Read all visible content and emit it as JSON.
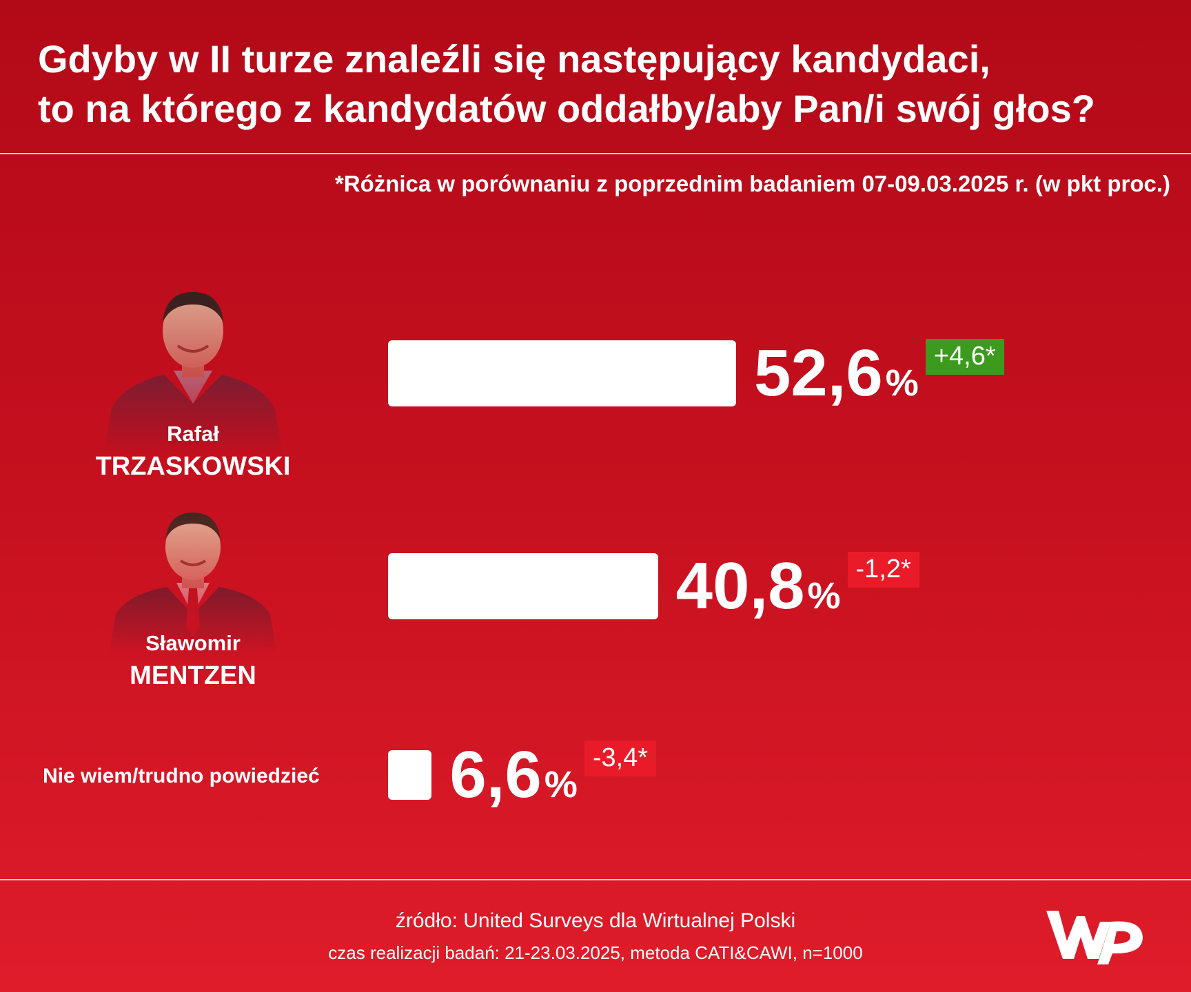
{
  "title_lines": [
    "Gdyby w II turze znaleźli się następujący kandydaci,",
    "to na którego z kandydatów oddałby/aby Pan/i swój głos?"
  ],
  "footnote": "*Różnica w porównaniu z poprzednim badaniem 07-09.03.2025 r. (w pkt proc.)",
  "chart_data": {
    "type": "bar",
    "orientation": "horizontal",
    "categories": [
      "Rafał TRZASKOWSKI",
      "Sławomir MENTZEN",
      "Nie wiem/trudno powiedzieć"
    ],
    "values": [
      52.6,
      40.8,
      6.6
    ],
    "value_labels": [
      "52,6",
      "40,8",
      "6,6"
    ],
    "unit": "%",
    "delta_labels": [
      "+4,6*",
      "-1,2*",
      "-3,4*"
    ],
    "deltas": [
      4.6,
      -1.2,
      -3.4
    ],
    "bar_color": "#ffffff",
    "grid": false
  },
  "candidates": [
    {
      "first_name": "Rafał",
      "last_name": "TRZASKOWSKI"
    },
    {
      "first_name": "Sławomir",
      "last_name": "MENTZEN"
    }
  ],
  "other_label": "Nie wiem/trudno powiedzieć",
  "colors": {
    "background_top": "#b30a18",
    "background_bottom": "#df1c2a",
    "positive_delta": "#3d9a1e",
    "negative_delta": "#ea1b28"
  },
  "source": {
    "line1": "źródło: United Surveys dla Wirtualnej Polski",
    "line2": "czas realizacji badań: 21-23.03.2025, metoda CATI&CAWI, n=1000"
  },
  "logo_icon": "wp-logo"
}
